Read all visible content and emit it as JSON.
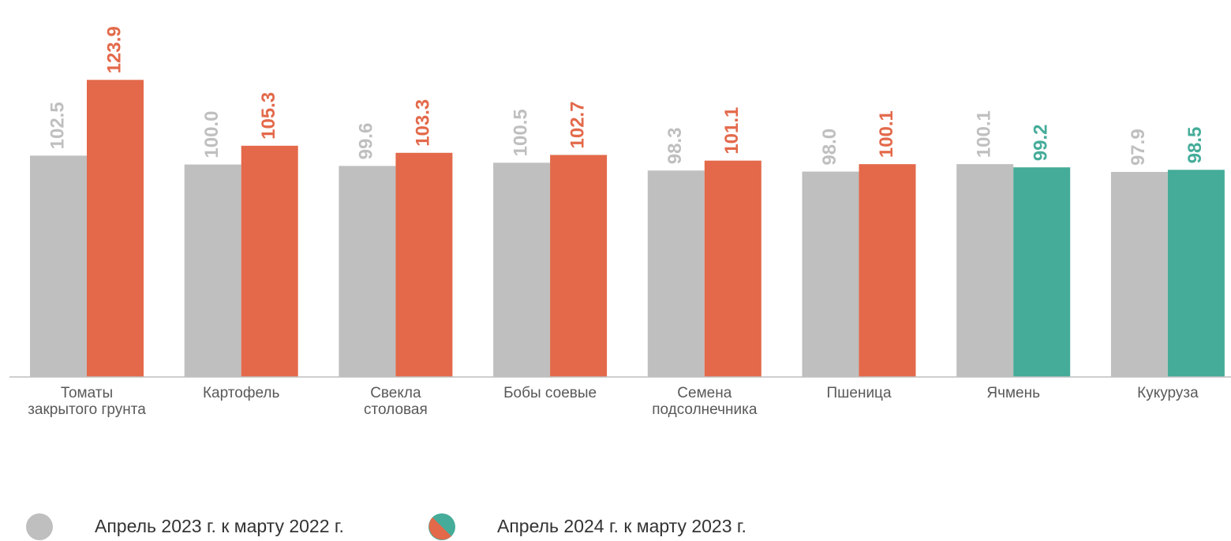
{
  "chart_data": {
    "type": "bar",
    "categories": [
      "Томаты\nзакрытого грунта",
      "Картофель",
      "Свекла\nстоловая",
      "Бобы соевые",
      "Семена\nподсолнечника",
      "Пшеница",
      "Ячмень",
      "Кукуруза"
    ],
    "series": [
      {
        "name": "Апрель 2023 г. к марту 2022 г.",
        "color": "#bfbfbf",
        "values": [
          102.5,
          100.0,
          99.6,
          100.5,
          98.3,
          98.0,
          100.1,
          97.9
        ],
        "value_labels": [
          "102.5",
          "100.0",
          "99.6",
          "100.5",
          "98.3",
          "98.0",
          "100.1",
          "97.9"
        ]
      },
      {
        "name": "Апрель 2024 г. к марту 2023 г.",
        "color": "#e3694a",
        "colors": [
          "#e3694a",
          "#e3694a",
          "#e3694a",
          "#e3694a",
          "#e3694a",
          "#e3694a",
          "#45ac99",
          "#45ac99"
        ],
        "values": [
          123.9,
          105.3,
          103.3,
          102.7,
          101.1,
          100.1,
          99.2,
          98.5
        ]
      }
    ],
    "ylim": [
      40,
      140
    ]
  }
}
